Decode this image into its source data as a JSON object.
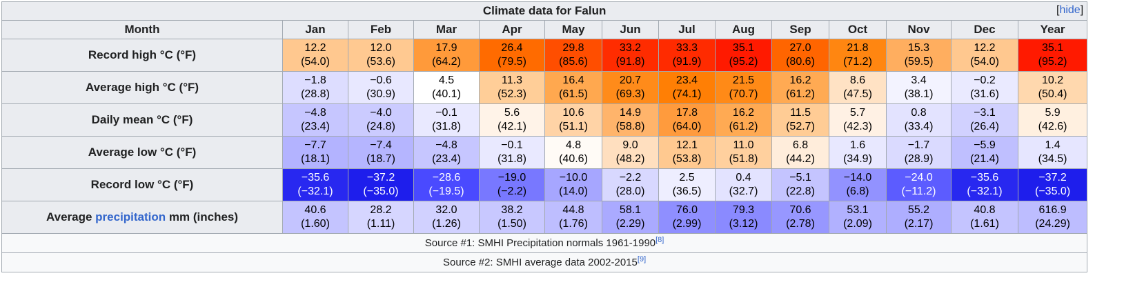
{
  "title": "Climate data for Falun",
  "hide_link": {
    "open": "[",
    "label": "hide",
    "close": "]"
  },
  "header": {
    "row_label": "Month",
    "months": [
      "Jan",
      "Feb",
      "Mar",
      "Apr",
      "May",
      "Jun",
      "Jul",
      "Aug",
      "Sep",
      "Oct",
      "Nov",
      "Dec"
    ],
    "year": "Year"
  },
  "rows": [
    {
      "label": "Record high °C (°F)",
      "cells": [
        {
          "c": "12.2",
          "f": "(54.0)",
          "bg": "#ffc88f",
          "fg": "#000000"
        },
        {
          "c": "12.0",
          "f": "(53.6)",
          "bg": "#ffc991",
          "fg": "#000000"
        },
        {
          "c": "17.9",
          "f": "(64.2)",
          "bg": "#ff9a3a",
          "fg": "#000000"
        },
        {
          "c": "26.4",
          "f": "(79.5)",
          "bg": "#ff6b00",
          "fg": "#000000"
        },
        {
          "c": "29.8",
          "f": "(85.6)",
          "bg": "#ff4e00",
          "fg": "#000000"
        },
        {
          "c": "33.2",
          "f": "(91.8)",
          "bg": "#ff2c00",
          "fg": "#000000"
        },
        {
          "c": "33.3",
          "f": "(91.9)",
          "bg": "#ff2b00",
          "fg": "#000000"
        },
        {
          "c": "35.1",
          "f": "(95.2)",
          "bg": "#ff1a00",
          "fg": "#000000"
        },
        {
          "c": "27.0",
          "f": "(80.6)",
          "bg": "#ff6500",
          "fg": "#000000"
        },
        {
          "c": "21.8",
          "f": "(71.2)",
          "bg": "#ff8611",
          "fg": "#000000"
        },
        {
          "c": "15.3",
          "f": "(59.5)",
          "bg": "#ffae5f",
          "fg": "#000000"
        },
        {
          "c": "12.2",
          "f": "(54.0)",
          "bg": "#ffc88f",
          "fg": "#000000"
        }
      ],
      "year": {
        "c": "35.1",
        "f": "(95.2)",
        "bg": "#ff1a00",
        "fg": "#000000"
      }
    },
    {
      "label": "Average high °C (°F)",
      "cells": [
        {
          "c": "−1.8",
          "f": "(28.8)",
          "bg": "#ddddff",
          "fg": "#000000"
        },
        {
          "c": "−0.6",
          "f": "(30.9)",
          "bg": "#e8e8ff",
          "fg": "#000000"
        },
        {
          "c": "4.5",
          "f": "(40.1)",
          "bg": "#ffffff",
          "fg": "#000000"
        },
        {
          "c": "11.3",
          "f": "(52.3)",
          "bg": "#ffce98",
          "fg": "#000000"
        },
        {
          "c": "16.4",
          "f": "(61.5)",
          "bg": "#ffa84f",
          "fg": "#000000"
        },
        {
          "c": "20.7",
          "f": "(69.3)",
          "bg": "#ff8b1a",
          "fg": "#000000"
        },
        {
          "c": "23.4",
          "f": "(74.1)",
          "bg": "#ff7f05",
          "fg": "#000000"
        },
        {
          "c": "21.5",
          "f": "(70.7)",
          "bg": "#ff8a17",
          "fg": "#000000"
        },
        {
          "c": "16.2",
          "f": "(61.2)",
          "bg": "#ffaa53",
          "fg": "#000000"
        },
        {
          "c": "8.6",
          "f": "(47.5)",
          "bg": "#ffe2c4",
          "fg": "#000000"
        },
        {
          "c": "3.4",
          "f": "(38.1)",
          "bg": "#f3f3ff",
          "fg": "#000000"
        },
        {
          "c": "−0.2",
          "f": "(31.6)",
          "bg": "#eaeaff",
          "fg": "#000000"
        }
      ],
      "year": {
        "c": "10.2",
        "f": "(50.4)",
        "bg": "#ffd8ae",
        "fg": "#000000"
      }
    },
    {
      "label": "Daily mean °C (°F)",
      "cells": [
        {
          "c": "−4.8",
          "f": "(23.4)",
          "bg": "#c6c6ff",
          "fg": "#000000"
        },
        {
          "c": "−4.0",
          "f": "(24.8)",
          "bg": "#cbcbff",
          "fg": "#000000"
        },
        {
          "c": "−0.1",
          "f": "(31.8)",
          "bg": "#e9e9ff",
          "fg": "#000000"
        },
        {
          "c": "5.6",
          "f": "(42.1)",
          "bg": "#fff3e8",
          "fg": "#000000"
        },
        {
          "c": "10.6",
          "f": "(51.1)",
          "bg": "#ffd3a6",
          "fg": "#000000"
        },
        {
          "c": "14.9",
          "f": "(58.8)",
          "bg": "#ffb46b",
          "fg": "#000000"
        },
        {
          "c": "17.8",
          "f": "(64.0)",
          "bg": "#ff9b3d",
          "fg": "#000000"
        },
        {
          "c": "16.2",
          "f": "(61.2)",
          "bg": "#ffaa53",
          "fg": "#000000"
        },
        {
          "c": "11.5",
          "f": "(52.7)",
          "bg": "#ffcc95",
          "fg": "#000000"
        },
        {
          "c": "5.7",
          "f": "(42.3)",
          "bg": "#fff1e4",
          "fg": "#000000"
        },
        {
          "c": "0.8",
          "f": "(33.4)",
          "bg": "#e3e3ff",
          "fg": "#000000"
        },
        {
          "c": "−3.1",
          "f": "(26.4)",
          "bg": "#d1d1ff",
          "fg": "#000000"
        }
      ],
      "year": {
        "c": "5.9",
        "f": "(42.6)",
        "bg": "#fff0e0",
        "fg": "#000000"
      }
    },
    {
      "label": "Average low °C (°F)",
      "cells": [
        {
          "c": "−7.7",
          "f": "(18.1)",
          "bg": "#b3b3ff",
          "fg": "#000000"
        },
        {
          "c": "−7.4",
          "f": "(18.7)",
          "bg": "#b5b5ff",
          "fg": "#000000"
        },
        {
          "c": "−4.8",
          "f": "(23.4)",
          "bg": "#c6c6ff",
          "fg": "#000000"
        },
        {
          "c": "−0.1",
          "f": "(31.8)",
          "bg": "#e9e9ff",
          "fg": "#000000"
        },
        {
          "c": "4.8",
          "f": "(40.6)",
          "bg": "#fffbf6",
          "fg": "#000000"
        },
        {
          "c": "9.0",
          "f": "(48.2)",
          "bg": "#ffdfbf",
          "fg": "#000000"
        },
        {
          "c": "12.1",
          "f": "(53.8)",
          "bg": "#ffc990",
          "fg": "#000000"
        },
        {
          "c": "11.0",
          "f": "(51.8)",
          "bg": "#ffd09e",
          "fg": "#000000"
        },
        {
          "c": "6.8",
          "f": "(44.2)",
          "bg": "#ffeddb",
          "fg": "#000000"
        },
        {
          "c": "1.6",
          "f": "(34.9)",
          "bg": "#e8e8ff",
          "fg": "#000000"
        },
        {
          "c": "−1.7",
          "f": "(28.9)",
          "bg": "#dadaff",
          "fg": "#000000"
        },
        {
          "c": "−5.9",
          "f": "(21.4)",
          "bg": "#bfbfff",
          "fg": "#000000"
        }
      ],
      "year": {
        "c": "1.4",
        "f": "(34.5)",
        "bg": "#e6e6ff",
        "fg": "#000000"
      }
    },
    {
      "label": "Record low °C (°F)",
      "cells": [
        {
          "c": "−35.6",
          "f": "(−32.1)",
          "bg": "#2828f0",
          "fg": "#ffffff"
        },
        {
          "c": "−37.2",
          "f": "(−35.0)",
          "bg": "#1e1eec",
          "fg": "#ffffff"
        },
        {
          "c": "−28.6",
          "f": "(−19.5)",
          "bg": "#4a4aff",
          "fg": "#ffffff"
        },
        {
          "c": "−19.0",
          "f": "(−2.2)",
          "bg": "#7878ff",
          "fg": "#000000"
        },
        {
          "c": "−10.0",
          "f": "(14.0)",
          "bg": "#a6a6ff",
          "fg": "#000000"
        },
        {
          "c": "−2.2",
          "f": "(28.0)",
          "bg": "#d8d8ff",
          "fg": "#000000"
        },
        {
          "c": "2.5",
          "f": "(36.5)",
          "bg": "#eeeeff",
          "fg": "#000000"
        },
        {
          "c": "0.4",
          "f": "(32.7)",
          "bg": "#e3e3ff",
          "fg": "#000000"
        },
        {
          "c": "−5.1",
          "f": "(22.8)",
          "bg": "#c4c4ff",
          "fg": "#000000"
        },
        {
          "c": "−14.0",
          "f": "(6.8)",
          "bg": "#9292ff",
          "fg": "#000000"
        },
        {
          "c": "−24.0",
          "f": "(−11.2)",
          "bg": "#5c5cff",
          "fg": "#ffffff"
        },
        {
          "c": "−35.6",
          "f": "(−32.1)",
          "bg": "#2828f0",
          "fg": "#ffffff"
        }
      ],
      "year": {
        "c": "−37.2",
        "f": "(−35.0)",
        "bg": "#1e1eec",
        "fg": "#ffffff"
      }
    },
    {
      "label_pre": "Average ",
      "label_link": "precipitation",
      "label_post": " mm (inches)",
      "cells": [
        {
          "c": "40.6",
          "f": "(1.60)",
          "bg": "#c4c4ff",
          "fg": "#000000"
        },
        {
          "c": "28.2",
          "f": "(1.11)",
          "bg": "#d6d6ff",
          "fg": "#000000"
        },
        {
          "c": "32.0",
          "f": "(1.26)",
          "bg": "#d1d1ff",
          "fg": "#000000"
        },
        {
          "c": "38.2",
          "f": "(1.50)",
          "bg": "#c8c8ff",
          "fg": "#000000"
        },
        {
          "c": "44.8",
          "f": "(1.76)",
          "bg": "#bebeff",
          "fg": "#000000"
        },
        {
          "c": "58.1",
          "f": "(2.29)",
          "bg": "#aaaaff",
          "fg": "#000000"
        },
        {
          "c": "76.0",
          "f": "(2.99)",
          "bg": "#8f8fff",
          "fg": "#000000"
        },
        {
          "c": "79.3",
          "f": "(3.12)",
          "bg": "#8a8aff",
          "fg": "#000000"
        },
        {
          "c": "70.6",
          "f": "(2.78)",
          "bg": "#9797ff",
          "fg": "#000000"
        },
        {
          "c": "53.1",
          "f": "(2.09)",
          "bg": "#b1b1ff",
          "fg": "#000000"
        },
        {
          "c": "55.2",
          "f": "(2.17)",
          "bg": "#aeaeff",
          "fg": "#000000"
        },
        {
          "c": "40.8",
          "f": "(1.61)",
          "bg": "#c4c4ff",
          "fg": "#000000"
        }
      ],
      "year": {
        "c": "616.9",
        "f": "(24.29)",
        "bg": "#bdbdff",
        "fg": "#000000"
      }
    }
  ],
  "sources": [
    {
      "text": "Source #1: SMHI Precipitation normals 1961-1990",
      "ref": "[8]"
    },
    {
      "text": "Source #2: SMHI average data 2002-2015",
      "ref": "[9]"
    }
  ]
}
